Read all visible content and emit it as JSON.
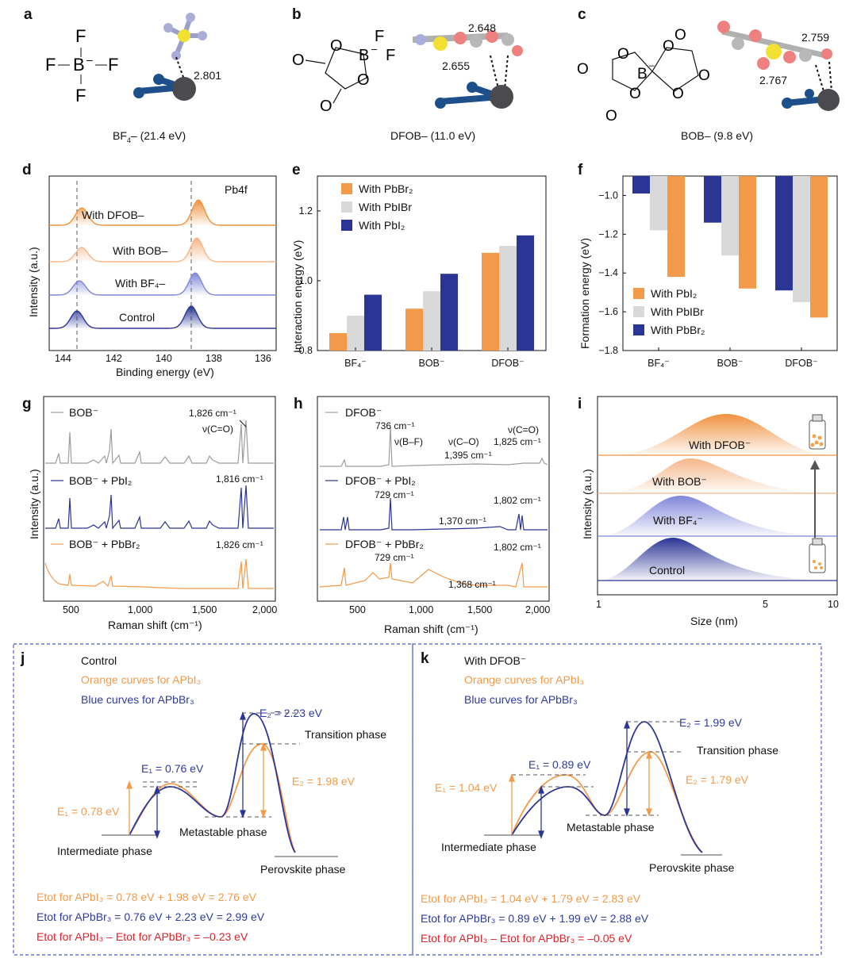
{
  "panels": {
    "a": {
      "label": "a",
      "formula_center": "B",
      "formula_charge": "–",
      "formula_F": "F",
      "bond_length": "2.801",
      "caption_pre": "BF",
      "caption_sub": "4",
      "caption_post": "– (21.4 eV)"
    },
    "b": {
      "label": "b",
      "formula_B": "B",
      "formula_charge": "–",
      "formula_F": "F",
      "formula_O": "O",
      "bond_1": "2.648",
      "bond_2": "2.655",
      "caption": "DFOB– (11.0 eV)"
    },
    "c": {
      "label": "c",
      "formula_B": "B",
      "formula_charge": "–",
      "formula_O": "O",
      "bond_1": "2.759",
      "bond_2": "2.767",
      "caption": "BOB– (9.8 eV)"
    },
    "d": {
      "label": "d",
      "corner": "Pb4f",
      "ylabel": "Intensity (a.u.)",
      "xlabel": "Binding energy (eV)",
      "ticks": [
        "144",
        "142",
        "140",
        "138",
        "136"
      ],
      "traces": [
        {
          "name": "With DFOB–",
          "color": "#f0913f"
        },
        {
          "name": "With BOB–",
          "color": "#f5b68a"
        },
        {
          "name": "With BF₄–",
          "color": "#7f86d8"
        },
        {
          "name": "Control",
          "color": "#2a3596"
        }
      ]
    },
    "e": {
      "label": "e",
      "ylabel": "Interaction energy (eV)",
      "legend": [
        "With PbBr₂",
        "With PbIBr",
        "With PbI₂"
      ]
    },
    "f": {
      "label": "f",
      "ylabel": "Formation energy (eV)",
      "legend": [
        "With PbI₂",
        "With PbIBr",
        "With PbBr₂"
      ]
    },
    "g": {
      "label": "g",
      "ylabel": "Intensity (a.u.)",
      "xlabel": "Raman shift (cm⁻¹)",
      "traces": [
        "BOB⁻",
        "BOB⁻ + PbI₂",
        "BOB⁻ + PbBr₂"
      ],
      "annotations": [
        "1,826 cm⁻¹",
        "ν(C=O)",
        "1,816 cm⁻¹",
        "1,826 cm⁻¹"
      ],
      "ticks": [
        "500",
        "1,000",
        "1,500",
        "2,000"
      ]
    },
    "h": {
      "label": "h",
      "xlabel": "Raman shift (cm⁻¹)",
      "traces": [
        "DFOB⁻",
        "DFOB⁻ + PbI₂",
        "DFOB⁻ + PbBr₂"
      ],
      "annotations": [
        "736 cm⁻¹",
        "ν(B–F)",
        "ν(C–O)",
        "1,395 cm⁻¹",
        "ν(C=O)",
        "1,825 cm⁻¹",
        "729 cm⁻¹",
        "1,370 cm⁻¹",
        "1,802 cm⁻¹",
        "729 cm⁻¹",
        "1,368 cm⁻¹",
        "1,802 cm⁻¹"
      ],
      "ticks": [
        "500",
        "1,000",
        "1,500",
        "2,000"
      ]
    },
    "i": {
      "label": "i",
      "ylabel": "Intensity (a.u.)",
      "xlabel": "Size (nm)",
      "ticks": [
        "1",
        "5",
        "10"
      ],
      "traces": [
        "With DFOB⁻",
        "With BOB⁻",
        "With BF₄⁻",
        "Control"
      ]
    },
    "j": {
      "label": "j",
      "title": "Control",
      "orange_note": "Orange curves for APbI₃",
      "blue_note": "Blue curves for APbBr₃",
      "E2_blue": "E₂ = 2.23 eV",
      "E2_orange": "E₂ = 1.98 eV",
      "E1_blue": "E₁ = 0.76 eV",
      "E1_orange": "E₁ = 0.78 eV",
      "transition": "Transition phase",
      "metastable": "Metastable phase",
      "intermediate": "Intermediate phase",
      "perovskite": "Perovskite phase",
      "sum_orange": "Etot for APbI₃ = 0.78 eV + 1.98 eV = 2.76 eV",
      "sum_blue": "Etot for APbBr₃ = 0.76 eV + 2.23 eV = 2.99 eV",
      "sum_red": "Etot for APbI₃ – Etot for APbBr₃ = –0.23 eV"
    },
    "k": {
      "label": "k",
      "title": "With DFOB⁻",
      "orange_note": "Orange curves for APbI₃",
      "blue_note": "Blue curves for APbBr₃",
      "E2_blue": "E₂ = 1.99 eV",
      "E2_orange": "E₂ = 1.79 eV",
      "E1_blue": "E₁ = 0.89 eV",
      "E1_orange": "E₁ = 1.04 eV",
      "transition": "Transition phase",
      "metastable": "Metastable phase",
      "intermediate": "Intermediate phase",
      "perovskite": "Perovskite phase",
      "sum_orange": "Etot for APbI₃ = 1.04 eV + 1.79 eV = 2.83 eV",
      "sum_blue": "Etot for APbBr₃ = 0.89 eV + 1.99 eV = 2.88 eV",
      "sum_red": "Etot for APbI₃ – Etot for APbBr₃ = –0.05 eV"
    }
  },
  "chart_data": [
    {
      "panel": "e",
      "type": "bar",
      "categories": [
        "BF₄⁻",
        "BOB⁻",
        "DFOB⁻"
      ],
      "ylabel": "Interaction energy (eV)",
      "ylim": [
        0.8,
        1.3
      ],
      "yticks": [
        0.8,
        1.0,
        1.2
      ],
      "series": [
        {
          "name": "With PbBr₂",
          "color": "#f29a4a",
          "values": [
            0.85,
            0.92,
            1.08
          ]
        },
        {
          "name": "With PbIBr",
          "color": "#d9d9d9",
          "values": [
            0.9,
            0.97,
            1.1
          ]
        },
        {
          "name": "With PbI₂",
          "color": "#2a3596",
          "values": [
            0.96,
            1.02,
            1.13
          ]
        }
      ]
    },
    {
      "panel": "f",
      "type": "bar",
      "categories": [
        "BF₄⁻",
        "BOB⁻",
        "DFOB⁻"
      ],
      "ylabel": "Formation energy (eV)",
      "ylim": [
        -1.8,
        -0.9
      ],
      "yticks": [
        -1.0,
        -1.2,
        -1.4,
        -1.6,
        -1.8
      ],
      "series": [
        {
          "name": "With PbBr₂",
          "color": "#2a3596",
          "values": [
            -0.99,
            -1.14,
            -1.49
          ]
        },
        {
          "name": "With PbIBr",
          "color": "#d9d9d9",
          "values": [
            -1.18,
            -1.31,
            -1.55
          ]
        },
        {
          "name": "With PbI₂",
          "color": "#f29a4a",
          "values": [
            -1.42,
            -1.48,
            -1.63
          ]
        }
      ]
    }
  ]
}
